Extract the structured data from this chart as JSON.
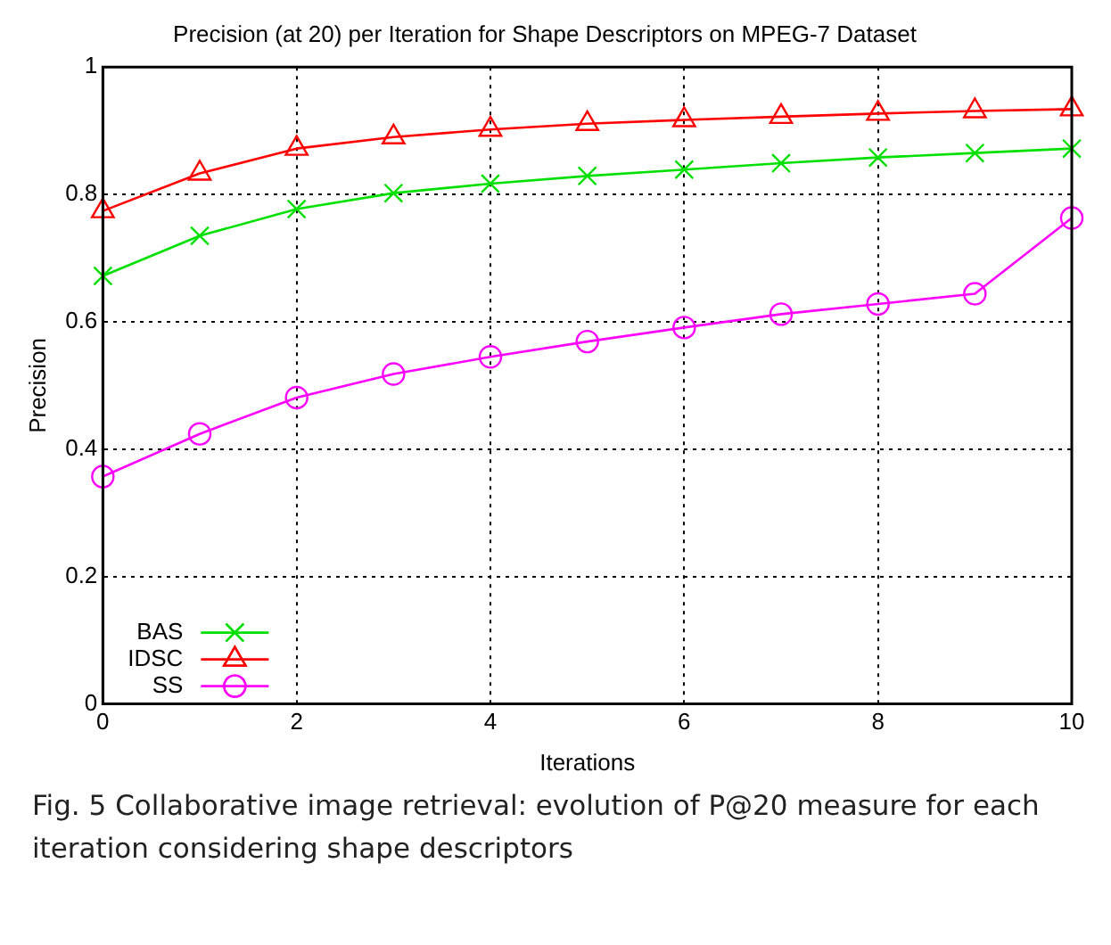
{
  "chart_data": {
    "type": "line",
    "title": "Precision (at 20) per Iteration for Shape Descriptors on MPEG-7 Dataset",
    "xlabel": "Iterations",
    "ylabel": "Precision",
    "x": [
      0,
      1,
      2,
      3,
      4,
      5,
      6,
      7,
      8,
      9,
      10
    ],
    "series": [
      {
        "name": "BAS",
        "color": "#00e000",
        "marker": "cross",
        "values": [
          0.672,
          0.735,
          0.777,
          0.802,
          0.817,
          0.829,
          0.839,
          0.849,
          0.858,
          0.865,
          0.872
        ]
      },
      {
        "name": "IDSC",
        "color": "#ff0000",
        "marker": "triangle",
        "values": [
          0.774,
          0.833,
          0.872,
          0.89,
          0.902,
          0.911,
          0.917,
          0.922,
          0.927,
          0.931,
          0.934
        ]
      },
      {
        "name": "SS",
        "color": "#ff00ff",
        "marker": "circle",
        "values": [
          0.357,
          0.424,
          0.481,
          0.518,
          0.545,
          0.569,
          0.591,
          0.612,
          0.628,
          0.644,
          0.763
        ]
      }
    ],
    "xlim": [
      0,
      10
    ],
    "xticks": [
      0,
      2,
      4,
      6,
      8,
      10
    ],
    "ylim": [
      0,
      1
    ],
    "yticks": [
      0,
      0.2,
      0.4,
      0.6,
      0.8,
      1
    ],
    "grid": true,
    "legend": "bottom left",
    "line_style": "solid",
    "annotations": [
      "Fig. 5 Collaborative image retrieval: evolution of P@20 measure for each iteration considering shape descriptors"
    ]
  }
}
